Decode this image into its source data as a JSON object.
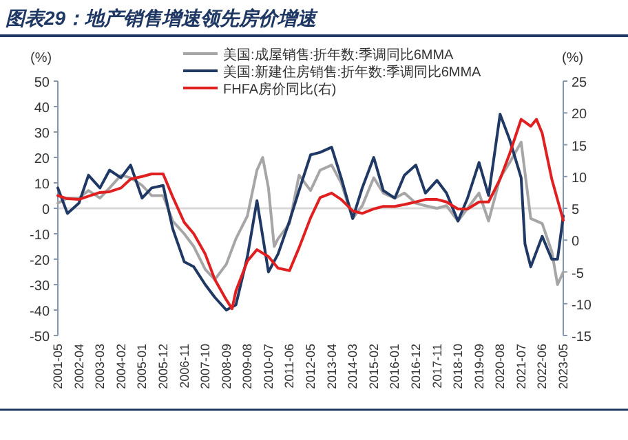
{
  "chart_data": {
    "type": "line",
    "title": "图表29：地产销售增速领先房价增速",
    "ylabel": "(%)",
    "y2label": "(%)",
    "legend": "top",
    "xlim": [
      "2001-05",
      "2023-05"
    ],
    "xticks": [
      "2001-05",
      "2002-04",
      "2003-03",
      "2004-02",
      "2005-01",
      "2005-12",
      "2006-11",
      "2007-10",
      "2008-09",
      "2009-08",
      "2010-07",
      "2011-06",
      "2012-05",
      "2013-04",
      "2014-03",
      "2015-02",
      "2016-01",
      "2016-12",
      "2017-11",
      "2018-10",
      "2019-09",
      "2020-08",
      "2021-07",
      "2022-06",
      "2023-05"
    ],
    "ylim": [
      -50,
      50
    ],
    "yticks": [
      -50,
      -40,
      -30,
      -20,
      -10,
      0,
      10,
      20,
      30,
      40,
      50
    ],
    "y2lim": [
      -15,
      25
    ],
    "y2ticks": [
      -15,
      -10,
      -5,
      0,
      5,
      10,
      15,
      20,
      25
    ],
    "ref_lines": [
      {
        "axis": "y",
        "value": 0,
        "color": "#d9d9d9"
      }
    ],
    "series": [
      {
        "name": "美国:成屋销售:折年数:季调同比6MMA",
        "color": "#a6a6a6",
        "x": [
          "2001-05",
          "2001-10",
          "2002-04",
          "2002-09",
          "2003-03",
          "2003-08",
          "2004-02",
          "2004-07",
          "2005-01",
          "2005-06",
          "2005-12",
          "2006-05",
          "2006-11",
          "2007-04",
          "2007-10",
          "2008-03",
          "2008-09",
          "2009-02",
          "2009-08",
          "2010-01",
          "2010-04",
          "2010-07",
          "2010-10",
          "2010-12",
          "2011-06",
          "2011-11",
          "2012-05",
          "2012-10",
          "2013-04",
          "2013-09",
          "2014-03",
          "2014-08",
          "2015-02",
          "2015-07",
          "2016-01",
          "2016-06",
          "2016-12",
          "2017-05",
          "2017-11",
          "2018-04",
          "2018-10",
          "2019-03",
          "2019-09",
          "2020-02",
          "2020-08",
          "2021-01",
          "2021-07",
          "2021-12",
          "2022-06",
          "2022-11",
          "2023-02",
          "2023-05"
        ],
        "values": [
          2,
          4,
          4,
          7,
          4,
          8,
          13,
          12,
          9,
          5,
          5,
          -5,
          -10,
          -15,
          -24,
          -28,
          -22,
          -12,
          -3,
          15,
          20,
          8,
          -15,
          -12,
          -6,
          13,
          7,
          15,
          17,
          10,
          -4,
          1,
          12,
          6,
          4,
          6,
          2,
          1,
          0,
          1,
          -5,
          0,
          6,
          -5,
          12,
          18,
          26,
          -4,
          -6,
          -17,
          -30,
          -25
        ]
      },
      {
        "name": "美国:新建住房销售:折年数:季调同比6MMA",
        "color": "#1f3864",
        "x": [
          "2001-05",
          "2001-10",
          "2002-04",
          "2002-09",
          "2003-03",
          "2003-08",
          "2004-02",
          "2004-07",
          "2005-01",
          "2005-06",
          "2005-12",
          "2006-05",
          "2006-11",
          "2007-04",
          "2007-10",
          "2008-03",
          "2008-09",
          "2009-02",
          "2009-08",
          "2010-01",
          "2010-07",
          "2010-12",
          "2011-06",
          "2011-11",
          "2012-05",
          "2012-10",
          "2013-04",
          "2013-09",
          "2014-03",
          "2014-08",
          "2015-02",
          "2015-07",
          "2016-01",
          "2016-06",
          "2016-12",
          "2017-05",
          "2017-11",
          "2018-04",
          "2018-10",
          "2019-03",
          "2019-09",
          "2020-02",
          "2020-08",
          "2021-01",
          "2021-07",
          "2021-09",
          "2021-12",
          "2022-06",
          "2022-11",
          "2023-02",
          "2023-05"
        ],
        "values": [
          8,
          -2,
          2,
          13,
          8,
          15,
          12,
          17,
          4,
          8,
          9,
          -8,
          -21,
          -23,
          -30,
          -35,
          -40,
          -38,
          -19,
          3,
          -25,
          -18,
          -5,
          7,
          21,
          22,
          24,
          12,
          -4,
          8,
          20,
          7,
          4,
          13,
          17,
          6,
          11,
          6,
          -5,
          4,
          18,
          5,
          37,
          27,
          12,
          -14,
          -23,
          -11,
          -20,
          -20,
          -3
        ]
      },
      {
        "name": "FHFA房价同比(右)",
        "color": "#e02020",
        "axis": "y2",
        "x": [
          "2001-05",
          "2001-10",
          "2002-04",
          "2002-09",
          "2003-03",
          "2003-08",
          "2004-02",
          "2004-07",
          "2005-01",
          "2005-06",
          "2005-12",
          "2006-05",
          "2006-11",
          "2007-04",
          "2007-10",
          "2008-03",
          "2008-09",
          "2008-12",
          "2009-02",
          "2009-08",
          "2010-01",
          "2010-07",
          "2010-12",
          "2011-06",
          "2011-11",
          "2012-05",
          "2012-10",
          "2013-04",
          "2013-09",
          "2014-03",
          "2014-08",
          "2015-02",
          "2015-07",
          "2016-01",
          "2016-06",
          "2016-12",
          "2017-05",
          "2017-11",
          "2018-04",
          "2018-10",
          "2019-03",
          "2019-09",
          "2020-02",
          "2020-08",
          "2021-01",
          "2021-07",
          "2021-12",
          "2022-03",
          "2022-06",
          "2022-11",
          "2023-05"
        ],
        "values": [
          7,
          6.5,
          6.4,
          6.9,
          7.5,
          7.6,
          8.2,
          9.6,
          10,
          10.4,
          10.4,
          6.8,
          2.8,
          1,
          -2.2,
          -6.2,
          -9.4,
          -10.8,
          -8,
          -3.3,
          -1.5,
          -2.6,
          -4.4,
          -4.8,
          -1.2,
          3.5,
          6.7,
          7.4,
          6.4,
          4.6,
          4.2,
          4.9,
          5.3,
          5.3,
          5.6,
          6,
          6.4,
          6.4,
          6,
          4.9,
          4.9,
          6,
          6,
          9.6,
          13.6,
          19,
          17.9,
          19,
          16.8,
          9.6,
          3.1
        ]
      }
    ]
  }
}
